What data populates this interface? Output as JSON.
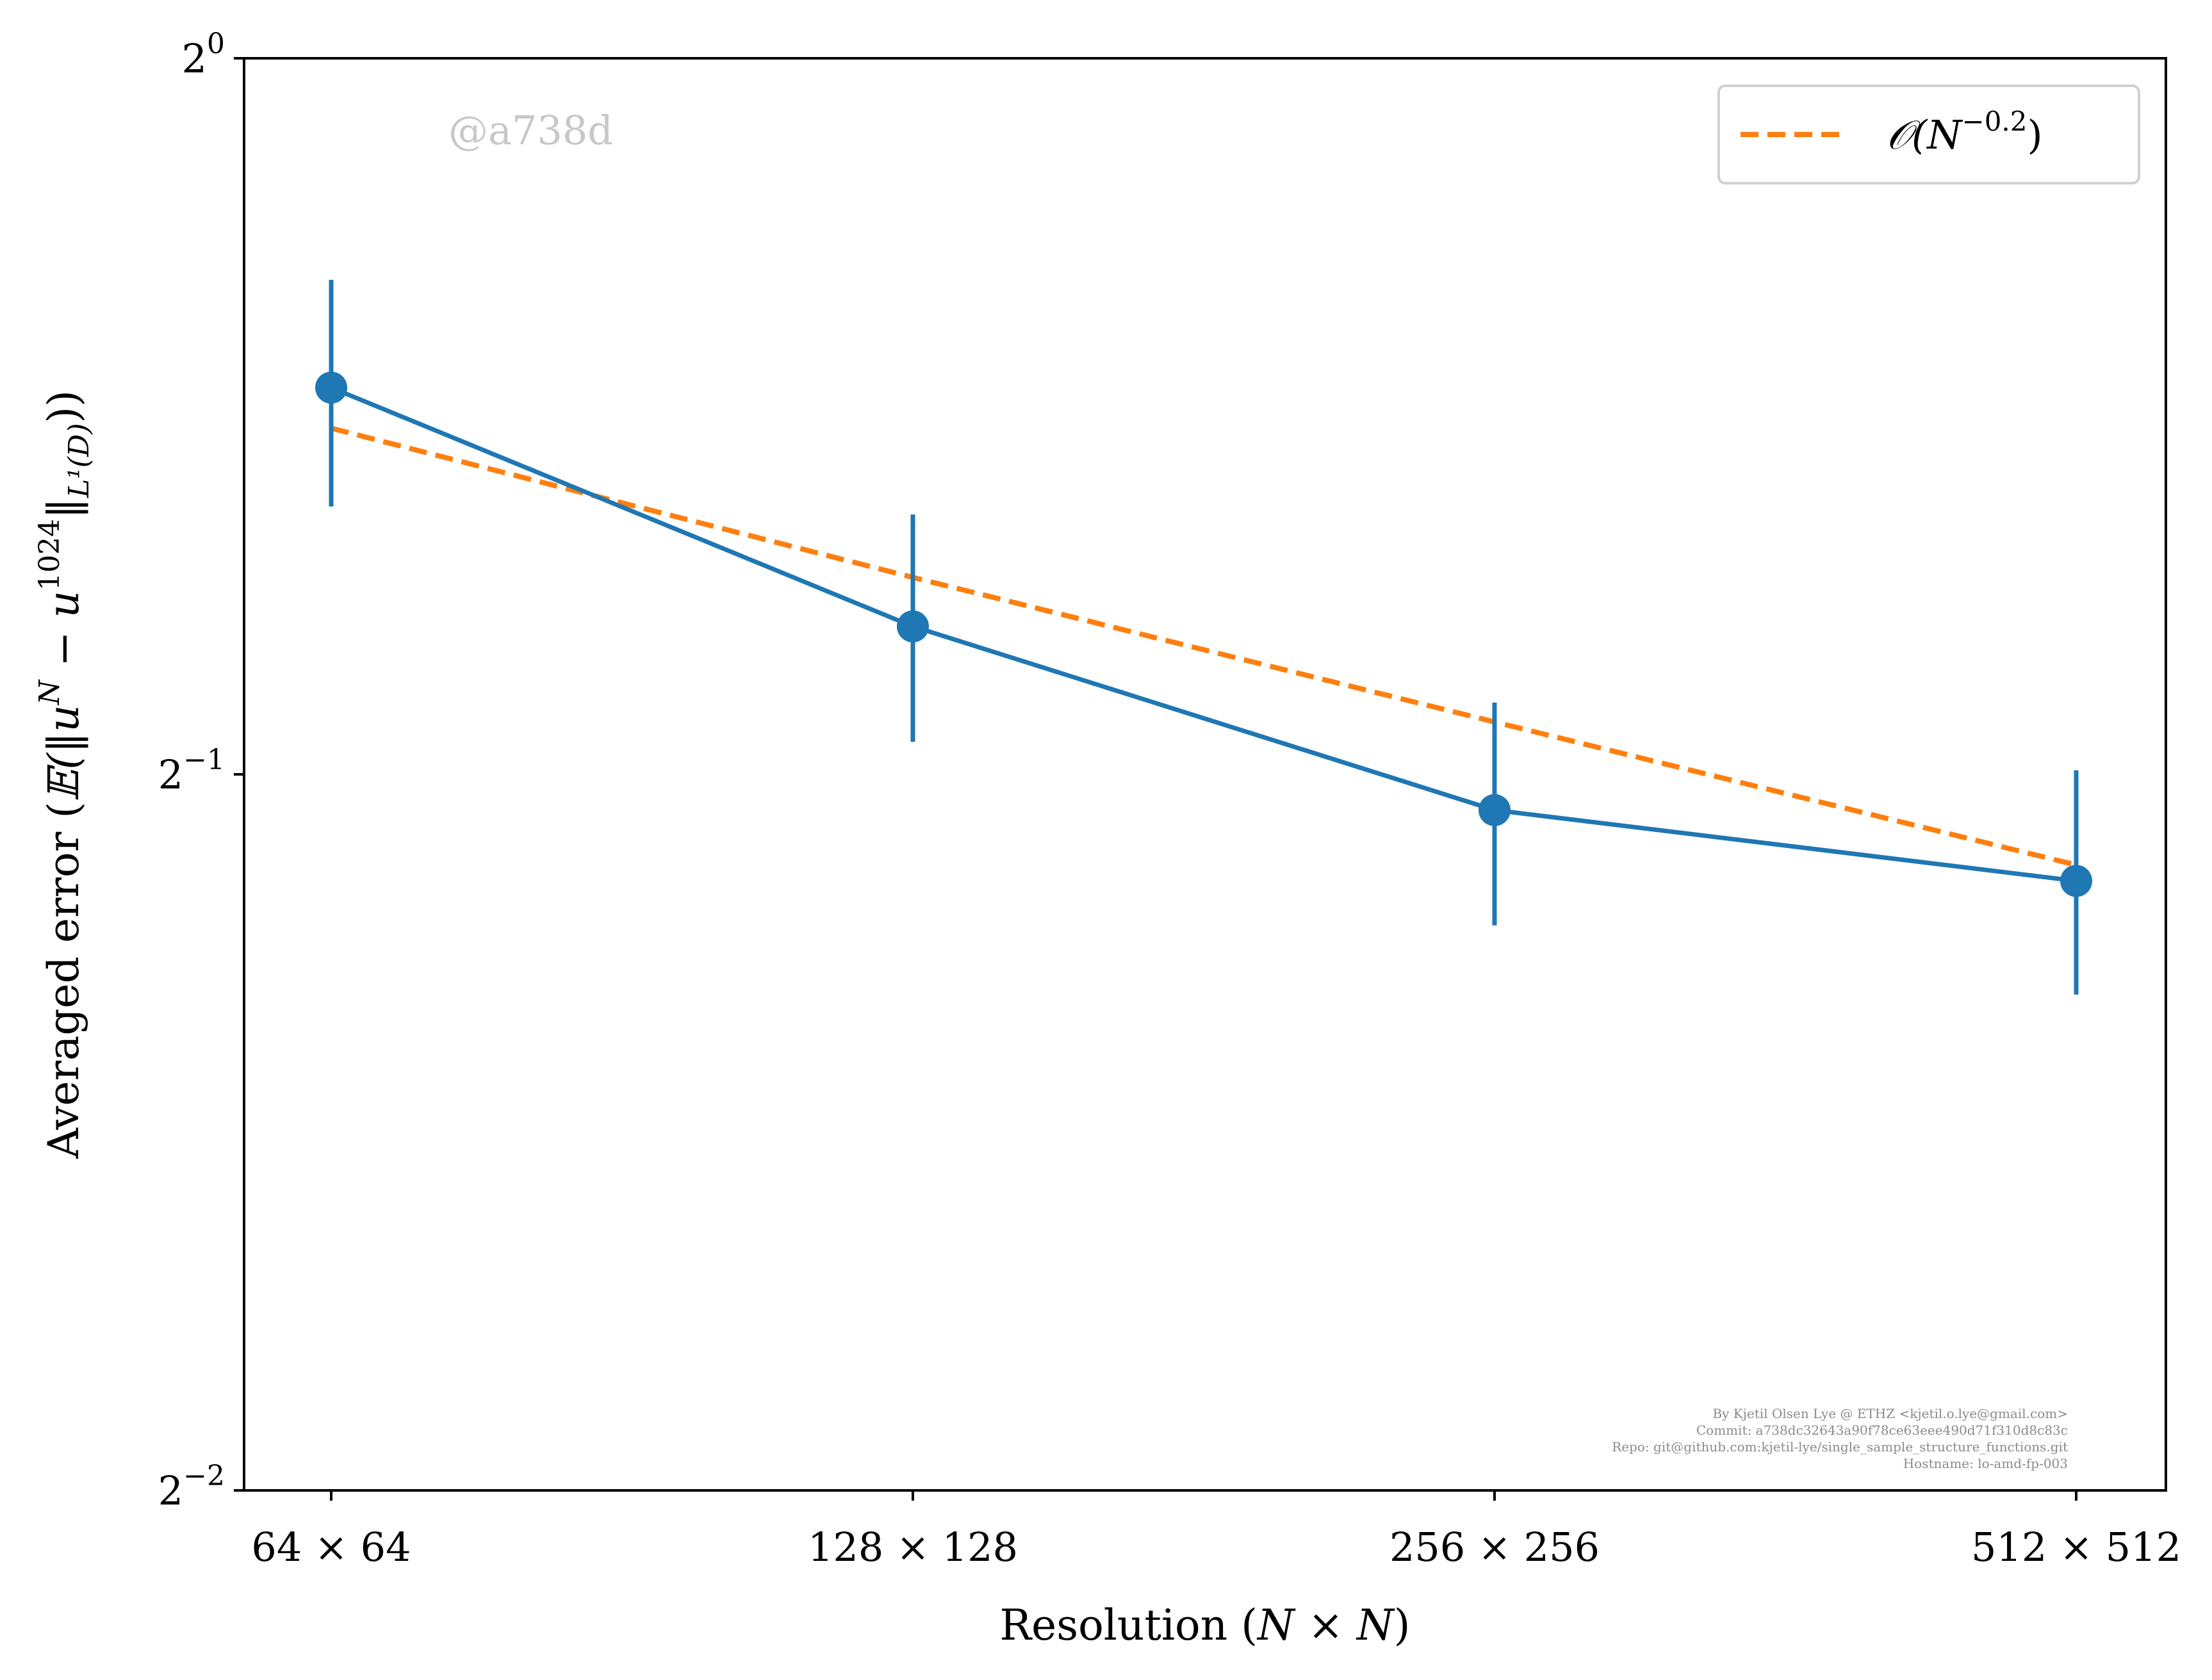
{
  "chart_data": {
    "type": "line",
    "x_scale": "log2",
    "y_scale": "log2",
    "categories": [
      "64 × 64",
      "128 × 128",
      "256 × 256",
      "512 × 512"
    ],
    "x": [
      64,
      128,
      256,
      512
    ],
    "series": [
      {
        "name": "",
        "color": "#1f77b4",
        "style": "solid-with-markers",
        "values": [
          0.727,
          0.577,
          0.483,
          0.451
        ],
        "err_low": [
          0.648,
          0.516,
          0.432,
          0.404
        ],
        "err_high": [
          0.807,
          0.643,
          0.536,
          0.502
        ]
      },
      {
        "name": "O(N^-0.2)",
        "color": "#ff7f0e",
        "style": "dashed",
        "values": [
          0.699,
          0.605,
          0.526,
          0.458
        ]
      }
    ],
    "xlabel": "Resolution (N × N)",
    "ylabel": "Averaged error (𝔼(‖u^N − u^1024‖_L¹(D)))",
    "ylim": [
      0.25,
      1.0
    ],
    "yticks": [
      {
        "base": "2",
        "exp": "0",
        "value": 1.0
      },
      {
        "base": "2",
        "exp": "−1",
        "value": 0.5
      },
      {
        "base": "2",
        "exp": "−2",
        "value": 0.25
      }
    ],
    "grid": false,
    "legend_position": "top-right"
  },
  "labels": {
    "xlabel_main": "Resolution (",
    "xlabel_math": "N × N",
    "xlabel_end": ")",
    "ylabel_main": "Averaged error (",
    "ylabel_math": "𝔼(‖u",
    "ylabel_sup1": "N",
    "ylabel_mid": " − u",
    "ylabel_sup2": "1024",
    "ylabel_close": "‖",
    "ylabel_sub": "L¹(D)",
    "ylabel_end": "))",
    "legend_main": "𝒪(N",
    "legend_sup": "−0.2",
    "legend_end": ")"
  },
  "watermark": "@a738d",
  "credits": [
    "By Kjetil Olsen Lye @ ETHZ <kjetil.o.lye@gmail.com>",
    "Commit: a738dc32643a90f78ce63eee490d71f310d8c83c",
    "Repo: git@github.com:kjetil-lye/single_sample_structure_functions.git",
    "Hostname: lo-amd-fp-003"
  ]
}
